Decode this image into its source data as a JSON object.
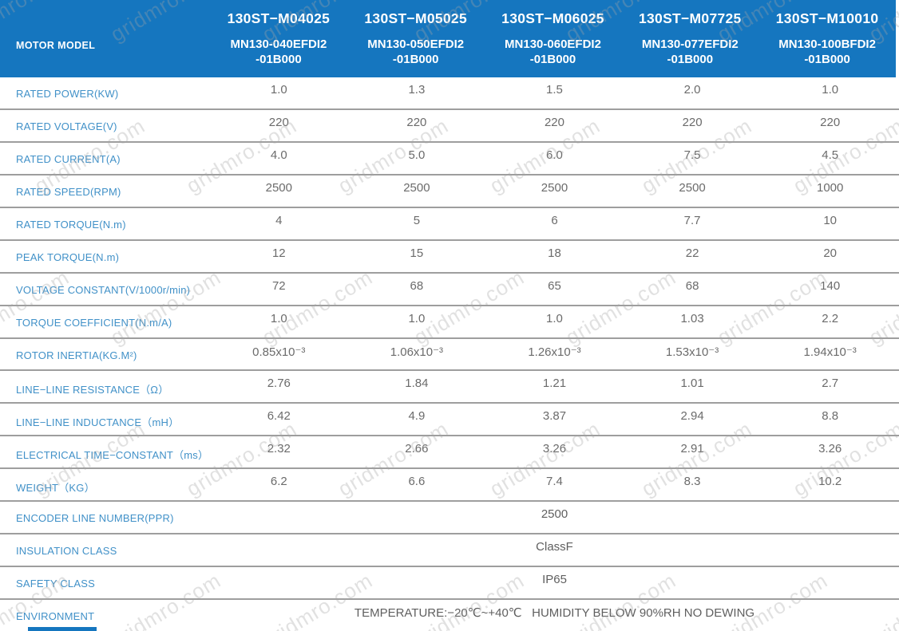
{
  "header": {
    "label": "MOTOR MODEL",
    "columns": [
      {
        "model": "130ST−M04025",
        "part_line1": "MN130-040EFDI2",
        "part_line2": "-01B000"
      },
      {
        "model": "130ST−M05025",
        "part_line1": "MN130-050EFDI2",
        "part_line2": "-01B000"
      },
      {
        "model": "130ST−M06025",
        "part_line1": "MN130-060EFDI2",
        "part_line2": "-01B000"
      },
      {
        "model": "130ST−M07725",
        "part_line1": "MN130-077EFDI2",
        "part_line2": "-01B000"
      },
      {
        "model": "130ST−M10010",
        "part_line1": "MN130-100BFDI2",
        "part_line2": "-01B000"
      }
    ]
  },
  "rows": [
    {
      "label": "RATED POWER(KW)",
      "values": [
        "1.0",
        "1.3",
        "1.5",
        "2.0",
        "1.0"
      ]
    },
    {
      "label": "RATED VOLTAGE(V)",
      "values": [
        "220",
        "220",
        "220",
        "220",
        "220"
      ]
    },
    {
      "label": "RATED CURRENT(A)",
      "values": [
        "4.0",
        "5.0",
        "6.0",
        "7.5",
        "4.5"
      ]
    },
    {
      "label": "RATED SPEED(RPM)",
      "values": [
        "2500",
        "2500",
        "2500",
        "2500",
        "1000"
      ]
    },
    {
      "label": "RATED TORQUE(N.m)",
      "values": [
        "4",
        "5",
        "6",
        "7.7",
        "10"
      ]
    },
    {
      "label": "PEAK TORQUE(N.m)",
      "values": [
        "12",
        "15",
        "18",
        "22",
        "20"
      ]
    },
    {
      "label": "VOLTAGE CONSTANT(V/1000r/min)",
      "values": [
        "72",
        "68",
        "65",
        "68",
        "140"
      ]
    },
    {
      "label": "TORQUE COEFFICIENT(N.m/A)",
      "values": [
        "1.0",
        "1.0",
        "1.0",
        "1.03",
        "2.2"
      ]
    },
    {
      "label": "ROTOR INERTIA(KG.M²)",
      "values": [
        "0.85x10⁻³",
        "1.06x10⁻³",
        "1.26x10⁻³",
        "1.53x10⁻³",
        "1.94x10⁻³"
      ]
    },
    {
      "label": "LINE−LINE RESISTANCE（Ω）",
      "values": [
        "2.76",
        "1.84",
        "1.21",
        "1.01",
        "2.7"
      ]
    },
    {
      "label": "LINE−LINE INDUCTANCE（mH）",
      "values": [
        "6.42",
        "4.9",
        "3.87",
        "2.94",
        "8.8"
      ]
    },
    {
      "label": "ELECTRICAL TIME−CONSTANT（ms）",
      "values": [
        "2.32",
        "2.66",
        "3.26",
        "2.91",
        "3.26"
      ]
    },
    {
      "label": "WEIGHT（KG）",
      "values": [
        "6.2",
        "6.6",
        "7.4",
        "8.3",
        "10.2"
      ]
    },
    {
      "label": "ENCODER LINE NUMBER(PPR)",
      "value": "2500"
    },
    {
      "label": "INSULATION CLASS",
      "value": "ClassF"
    },
    {
      "label": "SAFETY CLASS",
      "value": "IP65"
    },
    {
      "label": "ENVIRONMENT",
      "value": "TEMPERATURE:−20℃~+40℃   HUMIDITY BELOW 90%RH NO DEWING"
    }
  ],
  "watermark": {
    "text": "gridmro.com"
  },
  "colors": {
    "header_bg": "#1576bf",
    "header_text": "#ffffff",
    "label_text": "#4191c8",
    "value_text": "#6b6b6b",
    "divider": "#9e9e9e",
    "watermark_text": "#a5a5a5"
  }
}
